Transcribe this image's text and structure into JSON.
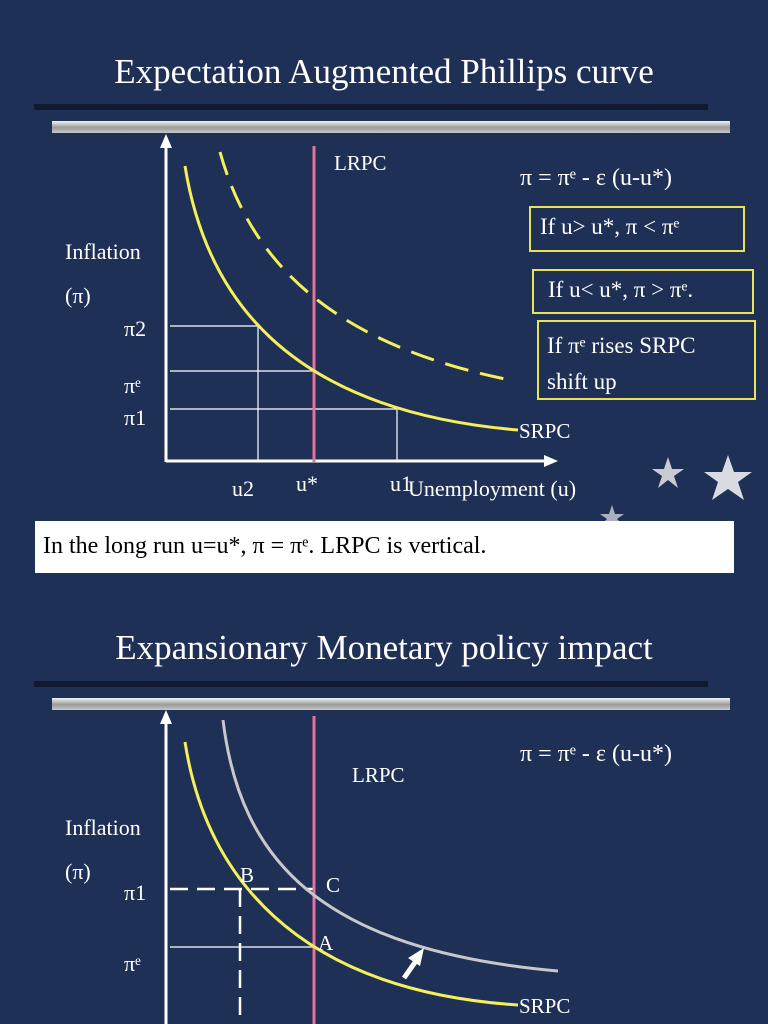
{
  "section1": {
    "title": "Expectation Augmented Phillips curve",
    "labels": {
      "lrpc": "LRPC",
      "inflation": "Inflation",
      "pi_symbol": "(π)",
      "pi2": "π2",
      "pie": "πᵉ",
      "pi1": "π1",
      "srpc": "SRPC",
      "u2": "u2",
      "ustar": "u*",
      "u1": "u1",
      "x_axis": "Unemployment (u)"
    },
    "equation": "π = πᵉ - ε (u-u*)",
    "box1": "If u> u*, π < πᵉ",
    "box2": "If u< u*, π > πᵉ.",
    "box3_line1": "If πᵉ rises SRPC",
    "box3_line2": "shift up",
    "summary": "In the long run u=u*, π = πᵉ. LRPC is vertical."
  },
  "section2": {
    "title": "Expansionary Monetary policy impact",
    "equation": "π = πᵉ - ε (u-u*)",
    "labels": {
      "lrpc": "LRPC",
      "inflation": "Inflation",
      "pi_symbol": "(π)",
      "pi1": "π1",
      "pie": "πᵉ",
      "point_b": "B",
      "point_c": "C",
      "point_a": "A",
      "srpc": "SRPC"
    }
  },
  "colors": {
    "background": "#1f3057",
    "srpc": "#f4ef5a",
    "lrpc": "#e8709a",
    "shifted_curve": "#c8c8cc",
    "box_border": "#e8e25a"
  }
}
